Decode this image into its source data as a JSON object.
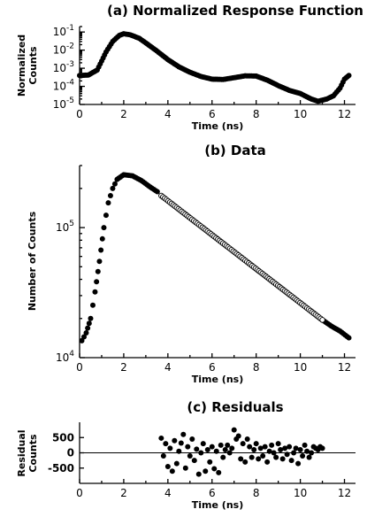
{
  "chart_data": [
    {
      "type": "scatter",
      "title": "(a) Normalized Response Function",
      "xlabel": "Time (ns)",
      "ylabel_lines": [
        "Normalized",
        "Counts"
      ],
      "xlim": [
        0,
        12.5
      ],
      "ylim": [
        1e-05,
        0.2
      ],
      "yscale": "log",
      "x_ticks": [
        0,
        2,
        4,
        6,
        8,
        10,
        12
      ],
      "y_ticks": [
        {
          "value": 1e-05,
          "label": "10",
          "exp": "-5"
        },
        {
          "value": 0.0001,
          "label": "10",
          "exp": "-4"
        },
        {
          "value": 0.001,
          "label": "10",
          "exp": "-3"
        },
        {
          "value": 0.01,
          "label": "10",
          "exp": "-2"
        },
        {
          "value": 0.1,
          "label": "10",
          "exp": "-1"
        }
      ],
      "series": [
        {
          "marker": "filled-circle",
          "points": [
            [
              0.0,
              0.0004
            ],
            [
              0.4,
              0.00042
            ],
            [
              0.8,
              0.0008
            ],
            [
              1.0,
              0.0025
            ],
            [
              1.2,
              0.008
            ],
            [
              1.5,
              0.03
            ],
            [
              1.8,
              0.065
            ],
            [
              2.0,
              0.08
            ],
            [
              2.3,
              0.07
            ],
            [
              2.7,
              0.045
            ],
            [
              3.0,
              0.025
            ],
            [
              3.5,
              0.009
            ],
            [
              4.0,
              0.003
            ],
            [
              4.5,
              0.0012
            ],
            [
              5.0,
              0.0006
            ],
            [
              5.5,
              0.00035
            ],
            [
              6.0,
              0.00025
            ],
            [
              6.5,
              0.00024
            ],
            [
              7.0,
              0.0003
            ],
            [
              7.5,
              0.00038
            ],
            [
              8.0,
              0.00037
            ],
            [
              8.5,
              0.00022
            ],
            [
              9.0,
              0.00011
            ],
            [
              9.5,
              6e-05
            ],
            [
              10.0,
              4e-05
            ],
            [
              10.5,
              2e-05
            ],
            [
              10.8,
              1.5e-05
            ],
            [
              11.2,
              2e-05
            ],
            [
              11.5,
              3e-05
            ],
            [
              11.8,
              8e-05
            ],
            [
              12.0,
              0.00025
            ],
            [
              12.2,
              0.0004
            ]
          ]
        }
      ]
    },
    {
      "type": "scatter",
      "title": "(b) Data",
      "xlabel": "Time (ns)",
      "ylabel": "Number of Counts",
      "xlim": [
        0,
        12.5
      ],
      "ylim": [
        10000,
        300000
      ],
      "yscale": "log",
      "x_ticks": [
        0,
        2,
        4,
        6,
        8,
        10,
        12
      ],
      "y_ticks": [
        {
          "value": 10000,
          "label": "10",
          "exp": "4"
        },
        {
          "value": 100000,
          "label": "10",
          "exp": "5"
        }
      ],
      "series": [
        {
          "marker": "filled-circle",
          "points": [
            [
              0.1,
              13500
            ],
            [
              0.3,
              15500
            ],
            [
              0.5,
              20000
            ],
            [
              0.7,
              32000
            ],
            [
              0.9,
              55000
            ],
            [
              1.1,
              100000
            ],
            [
              1.3,
              155000
            ],
            [
              1.5,
              200000
            ],
            [
              1.7,
              235000
            ],
            [
              2.0,
              255000
            ],
            [
              2.4,
              250000
            ],
            [
              2.8,
              230000
            ],
            [
              3.2,
              205000
            ],
            [
              3.6,
              185000
            ],
            [
              11.0,
              19500
            ],
            [
              11.4,
              17500
            ],
            [
              11.8,
              16000
            ],
            [
              12.2,
              14200
            ]
          ]
        },
        {
          "marker": "open-circle",
          "points": [
            [
              3.7,
              176000
            ],
            [
              11.0,
              19500
            ]
          ]
        }
      ]
    },
    {
      "type": "scatter",
      "title": "(c) Residuals",
      "xlabel": "Time (ns)",
      "ylabel_lines": [
        "Residual",
        "Counts"
      ],
      "xlim": [
        0,
        12.5
      ],
      "ylim": [
        -1000,
        1000
      ],
      "x_ticks": [
        0,
        2,
        4,
        6,
        8,
        10,
        12
      ],
      "y_ticks": [
        {
          "value": 500,
          "label": "500"
        },
        {
          "value": 0,
          "label": "0"
        },
        {
          "value": -500,
          "label": "-500"
        }
      ],
      "zero_line": true,
      "series": [
        {
          "marker": "filled-circle",
          "points": [
            [
              3.7,
              480
            ],
            [
              3.8,
              -100
            ],
            [
              3.9,
              300
            ],
            [
              4.0,
              -450
            ],
            [
              4.1,
              150
            ],
            [
              4.2,
              -600
            ],
            [
              4.3,
              400
            ],
            [
              4.4,
              -350
            ],
            [
              4.5,
              50
            ],
            [
              4.6,
              320
            ],
            [
              4.7,
              600
            ],
            [
              4.8,
              -500
            ],
            [
              4.9,
              200
            ],
            [
              5.0,
              -100
            ],
            [
              5.1,
              450
            ],
            [
              5.2,
              -250
            ],
            [
              5.3,
              120
            ],
            [
              5.4,
              -700
            ],
            [
              5.5,
              0
            ],
            [
              5.6,
              300
            ],
            [
              5.7,
              -600
            ],
            [
              5.8,
              100
            ],
            [
              5.9,
              -300
            ],
            [
              6.0,
              200
            ],
            [
              6.1,
              -520
            ],
            [
              6.2,
              50
            ],
            [
              6.3,
              -650
            ],
            [
              6.4,
              250
            ],
            [
              6.5,
              -150
            ],
            [
              6.6,
              100
            ],
            [
              6.7,
              250
            ],
            [
              6.8,
              0
            ],
            [
              6.9,
              150
            ],
            [
              7.0,
              750
            ],
            [
              7.1,
              450
            ],
            [
              7.2,
              550
            ],
            [
              7.3,
              -200
            ],
            [
              7.4,
              300
            ],
            [
              7.5,
              -300
            ],
            [
              7.6,
              450
            ],
            [
              7.7,
              200
            ],
            [
              7.8,
              -150
            ],
            [
              7.9,
              100
            ],
            [
              8.0,
              300
            ],
            [
              8.1,
              -200
            ],
            [
              8.2,
              150
            ],
            [
              8.3,
              -100
            ],
            [
              8.4,
              200
            ],
            [
              8.5,
              -300
            ],
            [
              8.6,
              50
            ],
            [
              8.7,
              250
            ],
            [
              8.8,
              0
            ],
            [
              8.9,
              -150
            ],
            [
              9.0,
              300
            ],
            [
              9.1,
              100
            ],
            [
              9.2,
              -200
            ],
            [
              9.3,
              150
            ],
            [
              9.4,
              -50
            ],
            [
              9.5,
              200
            ],
            [
              9.6,
              -250
            ],
            [
              9.7,
              0
            ],
            [
              9.8,
              150
            ],
            [
              9.9,
              -350
            ],
            [
              10.0,
              100
            ],
            [
              10.1,
              -100
            ],
            [
              10.2,
              250
            ],
            [
              10.3,
              50
            ],
            [
              10.4,
              -150
            ],
            [
              10.5,
              0
            ],
            [
              10.6,
              200
            ],
            [
              10.7,
              150
            ],
            [
              10.8,
              100
            ],
            [
              10.9,
              200
            ],
            [
              11.0,
              150
            ]
          ]
        }
      ]
    }
  ]
}
